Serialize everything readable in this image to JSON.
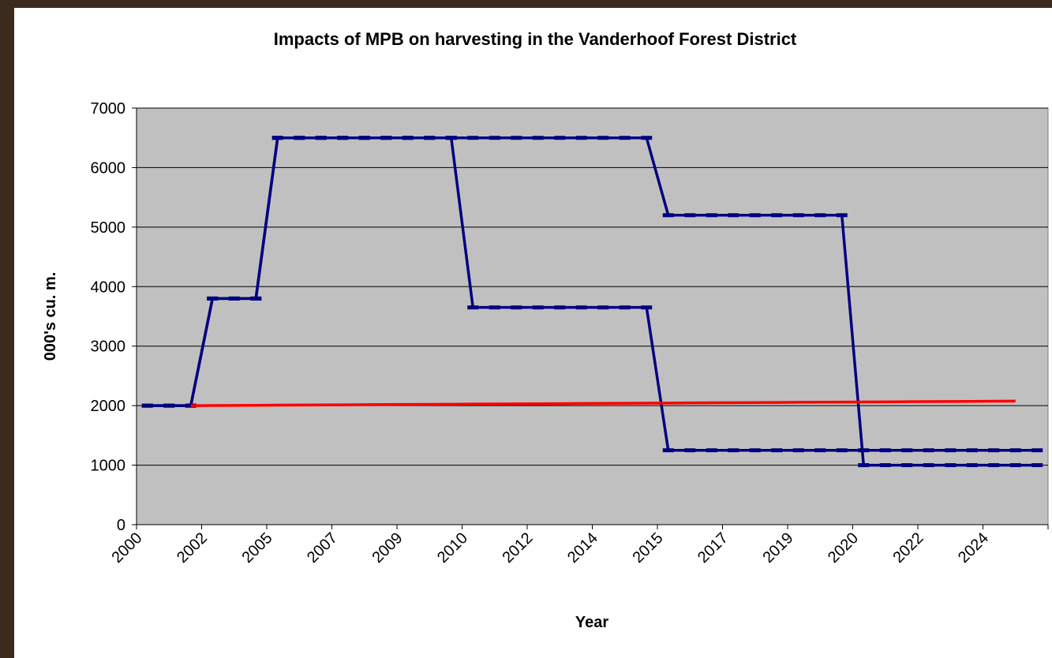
{
  "chart_data": {
    "type": "line",
    "title": "Impacts of MPB on harvesting in the Vanderhoof Forest District",
    "x_label": "Year",
    "y_label": "000's cu. m.",
    "categories": [
      "2000",
      null,
      null,
      "2002",
      null,
      null,
      "2005",
      null,
      null,
      "2007",
      null,
      null,
      "2009",
      null,
      null,
      "2010",
      null,
      null,
      "2012",
      null,
      null,
      "2014",
      null,
      null,
      "2015",
      null,
      null,
      "2017",
      null,
      null,
      "2019",
      null,
      null,
      "2020",
      null,
      null,
      "2022",
      null,
      null,
      "2024",
      null,
      null
    ],
    "series": [
      {
        "color": "#000080",
        "values": [
          2000,
          2000,
          2000,
          3800,
          3800,
          3800,
          6500,
          6500,
          6500,
          6500,
          6500,
          6500,
          6500,
          6500,
          6500,
          6500,
          6500,
          6500,
          6500,
          6500,
          6500,
          6500,
          6500,
          6500,
          5200,
          5200,
          5200,
          5200,
          5200,
          5200,
          5200,
          5200,
          5200,
          1000,
          1000,
          1000,
          1000,
          1000,
          1000,
          1000,
          1000,
          1000
        ]
      },
      {
        "color": "#000080",
        "values": [
          2000,
          2000,
          2000,
          3800,
          3800,
          3800,
          6500,
          6500,
          6500,
          6500,
          6500,
          6500,
          6500,
          6500,
          6500,
          3650,
          3650,
          3650,
          3650,
          3650,
          3650,
          3650,
          3650,
          3650,
          1250,
          1250,
          1250,
          1250,
          1250,
          1250,
          1250,
          1250,
          1250,
          1250,
          1250,
          1250,
          1250,
          1250,
          1250,
          1250,
          1250,
          1250
        ]
      },
      {
        "color": "#ff0000",
        "markers": false,
        "values": [
          null,
          null,
          2000,
          2002,
          2004,
          2006,
          2008,
          2010,
          2012,
          2014,
          2016,
          2018,
          2020,
          2022,
          2024,
          2026,
          2028,
          2030,
          2032,
          2034,
          2036,
          2038,
          2040,
          2042,
          2044,
          2046,
          2048,
          2050,
          2052,
          2054,
          2056,
          2058,
          2060,
          2062,
          2064,
          2066,
          2068,
          2070,
          2072,
          2074,
          2076,
          null
        ]
      }
    ],
    "ylim": [
      0,
      7000
    ],
    "yticks": [
      0,
      1000,
      2000,
      3000,
      4000,
      5000,
      6000,
      7000
    ],
    "grid": true,
    "plot_background": "#c0c0c0"
  }
}
